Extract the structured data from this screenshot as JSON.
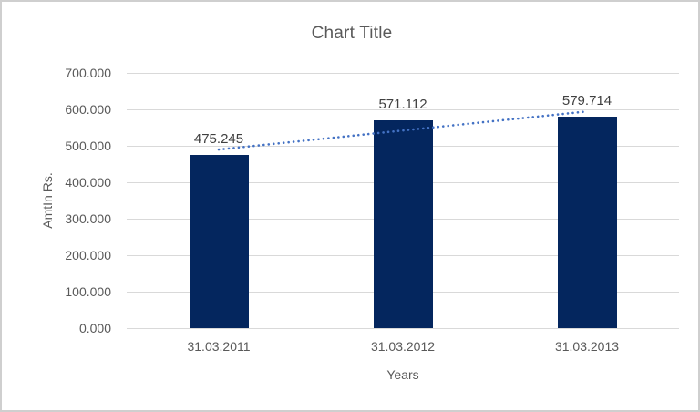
{
  "chart_data": {
    "type": "bar",
    "title": "Chart Title",
    "xlabel": "Years",
    "ylabel": "AmtIn Rs.",
    "categories": [
      "31.03.2011",
      "31.03.2012",
      "31.03.2013"
    ],
    "values": [
      475.245,
      571.112,
      579.714
    ],
    "data_labels": [
      "475.245",
      "571.112",
      "579.714"
    ],
    "ylim": [
      0,
      700
    ],
    "ytick_interval": 100,
    "ytick_labels": [
      "0.000",
      "100.000",
      "200.000",
      "300.000",
      "400.000",
      "500.000",
      "600.000",
      "700.000"
    ],
    "grid": true,
    "legend": "none",
    "trendline": {
      "type": "linear",
      "style": "dotted",
      "color": "#4472C4",
      "values": [
        489.789,
        542.024,
        594.258
      ]
    },
    "colors": {
      "bar": "#04265E",
      "gridline": "#D9D9D9",
      "axis_text": "#595959",
      "title_text": "#595959",
      "data_label_text": "#404040",
      "canvas_border": "#CFCFCF",
      "background": "#FFFFFF"
    }
  }
}
